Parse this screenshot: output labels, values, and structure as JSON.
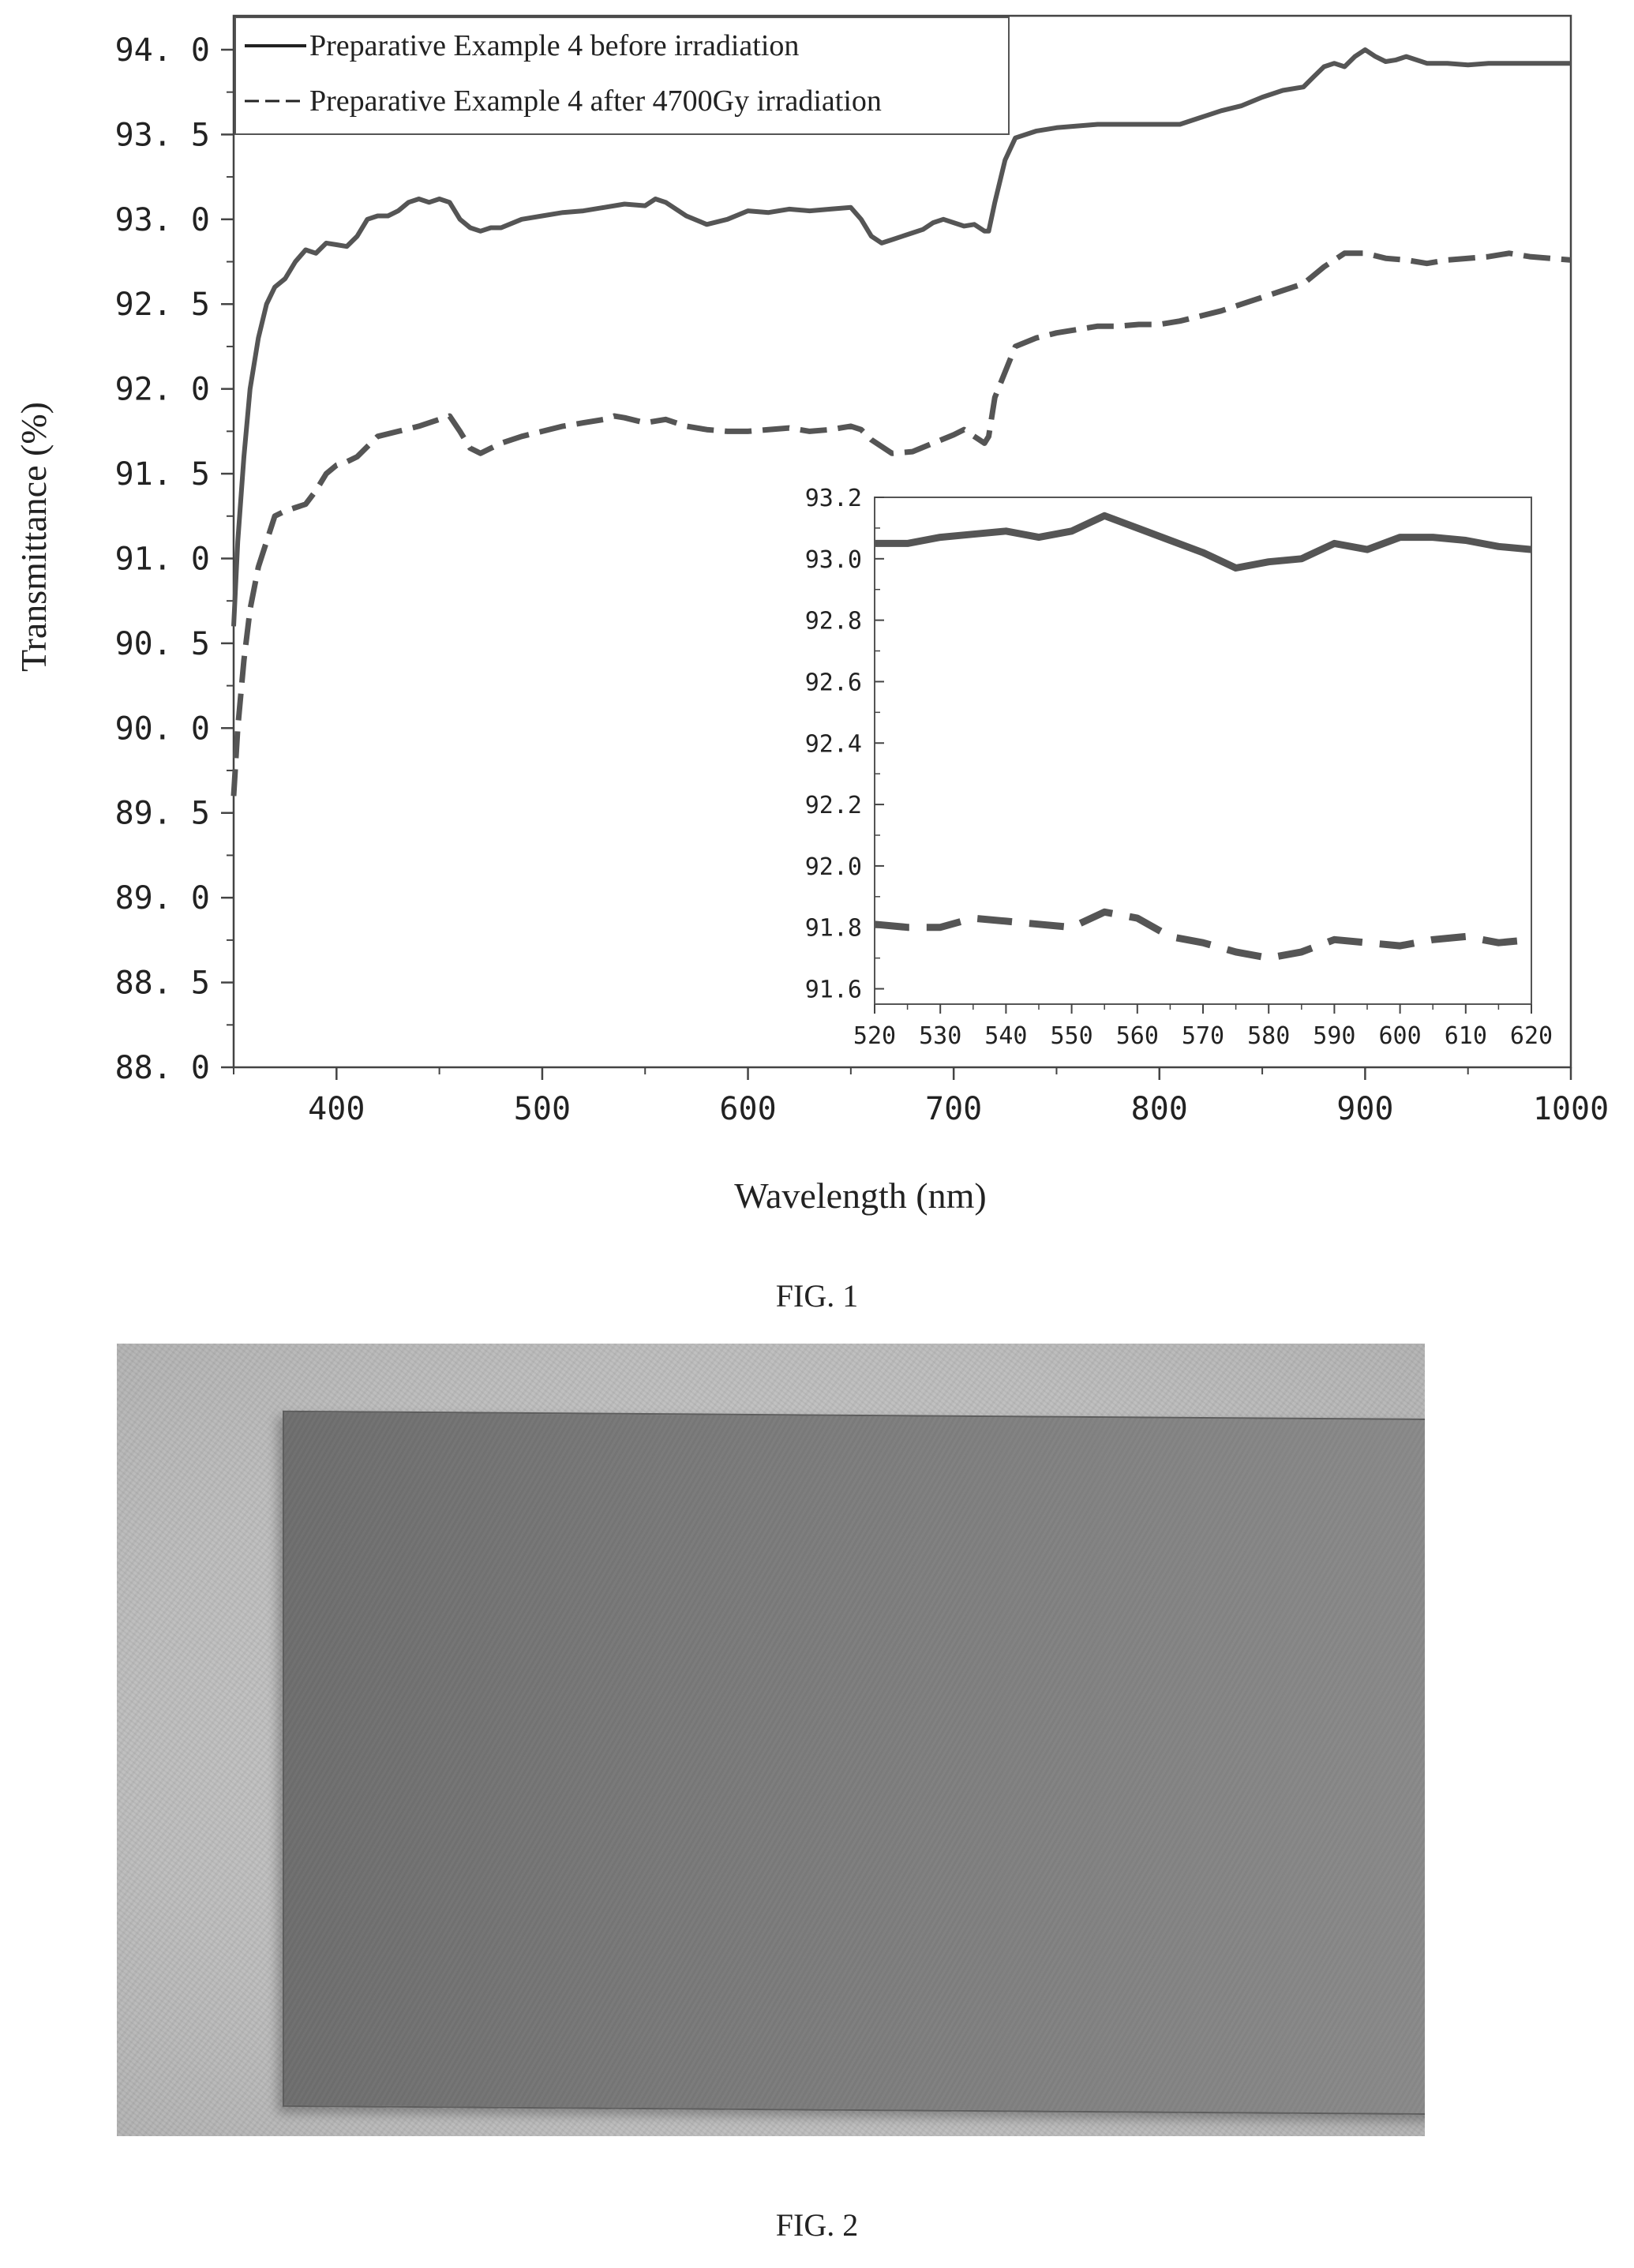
{
  "figure1": {
    "caption": "FIG. 1",
    "chart_data": {
      "type": "line",
      "title": "",
      "xlabel": "Wavelength (nm)",
      "ylabel": "Transmittance (%)",
      "xlim": [
        350,
        1000
      ],
      "ylim": [
        88.0,
        94.2
      ],
      "x_ticks": [
        "400",
        "500",
        "600",
        "700",
        "800",
        "900",
        "1000"
      ],
      "y_ticks": [
        "88. 0",
        "88. 5",
        "89. 0",
        "89. 5",
        "90. 0",
        "90. 5",
        "91. 0",
        "91. 5",
        "92. 0",
        "92. 5",
        "93. 0",
        "93. 5",
        "94. 0"
      ],
      "grid": false,
      "legend_position": "top-left",
      "series": [
        {
          "name": "Preparative Example 4 before irradiation",
          "style": "solid",
          "color": "#555555",
          "x": [
            350,
            352,
            355,
            358,
            362,
            366,
            370,
            375,
            380,
            385,
            390,
            395,
            400,
            405,
            410,
            415,
            420,
            425,
            430,
            435,
            440,
            445,
            450,
            455,
            460,
            465,
            470,
            475,
            480,
            490,
            500,
            510,
            520,
            530,
            540,
            550,
            555,
            560,
            570,
            580,
            590,
            600,
            610,
            620,
            630,
            640,
            650,
            655,
            660,
            665,
            670,
            675,
            680,
            685,
            690,
            695,
            700,
            705,
            710,
            715,
            717,
            720,
            725,
            730,
            740,
            750,
            760,
            770,
            780,
            790,
            800,
            810,
            820,
            830,
            840,
            850,
            860,
            870,
            875,
            880,
            885,
            890,
            895,
            900,
            905,
            910,
            915,
            920,
            925,
            930,
            940,
            950,
            960,
            970,
            980,
            990,
            1000
          ],
          "y": [
            90.6,
            91.1,
            91.6,
            92.0,
            92.3,
            92.5,
            92.6,
            92.65,
            92.75,
            92.82,
            92.8,
            92.86,
            92.85,
            92.84,
            92.9,
            93.0,
            93.02,
            93.02,
            93.05,
            93.1,
            93.12,
            93.1,
            93.12,
            93.1,
            93.0,
            92.95,
            92.93,
            92.95,
            92.95,
            93.0,
            93.02,
            93.04,
            93.05,
            93.07,
            93.09,
            93.08,
            93.12,
            93.1,
            93.02,
            92.97,
            93.0,
            93.05,
            93.04,
            93.06,
            93.05,
            93.06,
            93.07,
            93.0,
            92.9,
            92.86,
            92.88,
            92.9,
            92.92,
            92.94,
            92.98,
            93.0,
            92.98,
            92.96,
            92.97,
            92.93,
            92.93,
            93.1,
            93.35,
            93.48,
            93.52,
            93.54,
            93.55,
            93.56,
            93.56,
            93.56,
            93.56,
            93.56,
            93.6,
            93.64,
            93.67,
            93.72,
            93.76,
            93.78,
            93.84,
            93.9,
            93.92,
            93.9,
            93.96,
            94.0,
            93.96,
            93.93,
            93.94,
            93.96,
            93.94,
            93.92,
            93.92,
            93.91,
            93.92,
            93.92,
            93.92,
            93.92,
            93.92
          ]
        },
        {
          "name": "Preparative Example 4 after 4700Gy irradiation",
          "style": "dashed",
          "color": "#555555",
          "x": [
            350,
            352,
            355,
            358,
            362,
            366,
            370,
            375,
            380,
            385,
            390,
            395,
            400,
            405,
            410,
            420,
            430,
            440,
            450,
            455,
            460,
            465,
            470,
            475,
            480,
            490,
            500,
            510,
            520,
            530,
            535,
            540,
            550,
            560,
            570,
            580,
            590,
            600,
            610,
            620,
            630,
            640,
            650,
            655,
            660,
            670,
            680,
            690,
            700,
            705,
            710,
            715,
            717,
            720,
            725,
            730,
            740,
            750,
            760,
            770,
            780,
            790,
            800,
            810,
            820,
            830,
            840,
            850,
            860,
            870,
            880,
            890,
            900,
            910,
            920,
            930,
            940,
            950,
            960,
            970,
            980,
            990,
            1000
          ],
          "y": [
            89.6,
            90.0,
            90.4,
            90.7,
            90.95,
            91.1,
            91.25,
            91.28,
            91.3,
            91.32,
            91.4,
            91.5,
            91.55,
            91.57,
            91.6,
            91.72,
            91.75,
            91.78,
            91.82,
            91.84,
            91.75,
            91.65,
            91.62,
            91.65,
            91.68,
            91.72,
            91.75,
            91.78,
            91.8,
            91.82,
            91.84,
            91.83,
            91.8,
            91.82,
            91.78,
            91.76,
            91.75,
            91.75,
            91.76,
            91.77,
            91.75,
            91.76,
            91.78,
            91.76,
            91.7,
            91.62,
            91.63,
            91.68,
            91.73,
            91.76,
            91.72,
            91.68,
            91.72,
            91.95,
            92.1,
            92.25,
            92.3,
            92.33,
            92.35,
            92.37,
            92.37,
            92.38,
            92.38,
            92.4,
            92.43,
            92.46,
            92.5,
            92.54,
            92.58,
            92.62,
            92.72,
            92.8,
            92.8,
            92.77,
            92.76,
            92.74,
            92.76,
            92.77,
            92.78,
            92.8,
            92.78,
            92.77,
            92.76
          ]
        }
      ],
      "inset": {
        "type": "line",
        "xlim": [
          520,
          620
        ],
        "ylim": [
          91.55,
          93.2
        ],
        "x_ticks": [
          "520",
          "530",
          "540",
          "550",
          "560",
          "570",
          "580",
          "590",
          "600",
          "610",
          "620"
        ],
        "y_ticks": [
          "91.6",
          "91.8",
          "92.0",
          "92.2",
          "92.4",
          "92.6",
          "92.8",
          "93.0",
          "93.2"
        ],
        "series": [
          {
            "name": "Preparative Example 4 before irradiation",
            "style": "solid",
            "x": [
              520,
              525,
              530,
              535,
              540,
              545,
              550,
              555,
              560,
              565,
              570,
              575,
              580,
              585,
              590,
              595,
              600,
              605,
              610,
              615,
              620
            ],
            "y": [
              93.05,
              93.05,
              93.07,
              93.08,
              93.09,
              93.07,
              93.09,
              93.14,
              93.1,
              93.06,
              93.02,
              92.97,
              92.99,
              93.0,
              93.05,
              93.03,
              93.07,
              93.07,
              93.06,
              93.04,
              93.03
            ]
          },
          {
            "name": "Preparative Example 4 after 4700Gy irradiation",
            "style": "dashed",
            "x": [
              520,
              525,
              530,
              535,
              540,
              545,
              550,
              555,
              560,
              565,
              570,
              575,
              580,
              585,
              590,
              595,
              600,
              605,
              610,
              615,
              620
            ],
            "y": [
              91.81,
              91.8,
              91.8,
              91.83,
              91.82,
              91.81,
              91.8,
              91.85,
              91.83,
              91.77,
              91.75,
              91.72,
              91.7,
              91.72,
              91.76,
              91.75,
              91.74,
              91.76,
              91.77,
              91.75,
              91.76
            ]
          }
        ]
      }
    }
  },
  "figure2": {
    "caption": "FIG. 2",
    "photo_colors": {
      "background": "#bdbdbd",
      "panel": "#7a7a7a"
    }
  }
}
